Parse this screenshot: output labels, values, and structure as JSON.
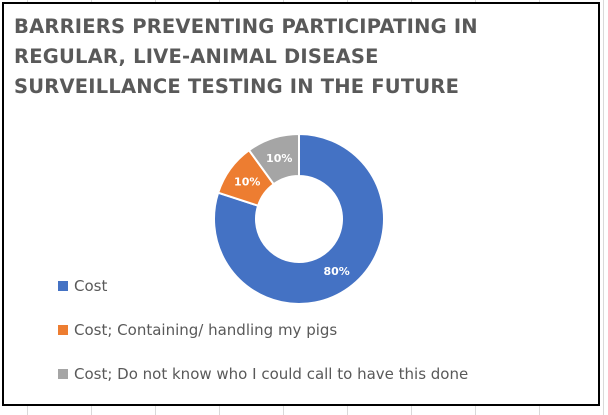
{
  "chart_data": {
    "type": "pie",
    "variant": "donut",
    "title": "BARRIERS PREVENTING PARTICIPATING IN REGULAR, LIVE-ANIMAL DISEASE SURVEILLANCE TESTING IN THE FUTURE",
    "categories": [
      "Cost",
      "Cost; Containing/ handling my pigs",
      "Cost; Do not know who I could call to have this done"
    ],
    "values": [
      80,
      10,
      10
    ],
    "data_labels": [
      "80%",
      "10%",
      "10%"
    ],
    "colors": [
      "#4472C4",
      "#ED7D31",
      "#A5A5A5"
    ],
    "legend_position": "left"
  }
}
